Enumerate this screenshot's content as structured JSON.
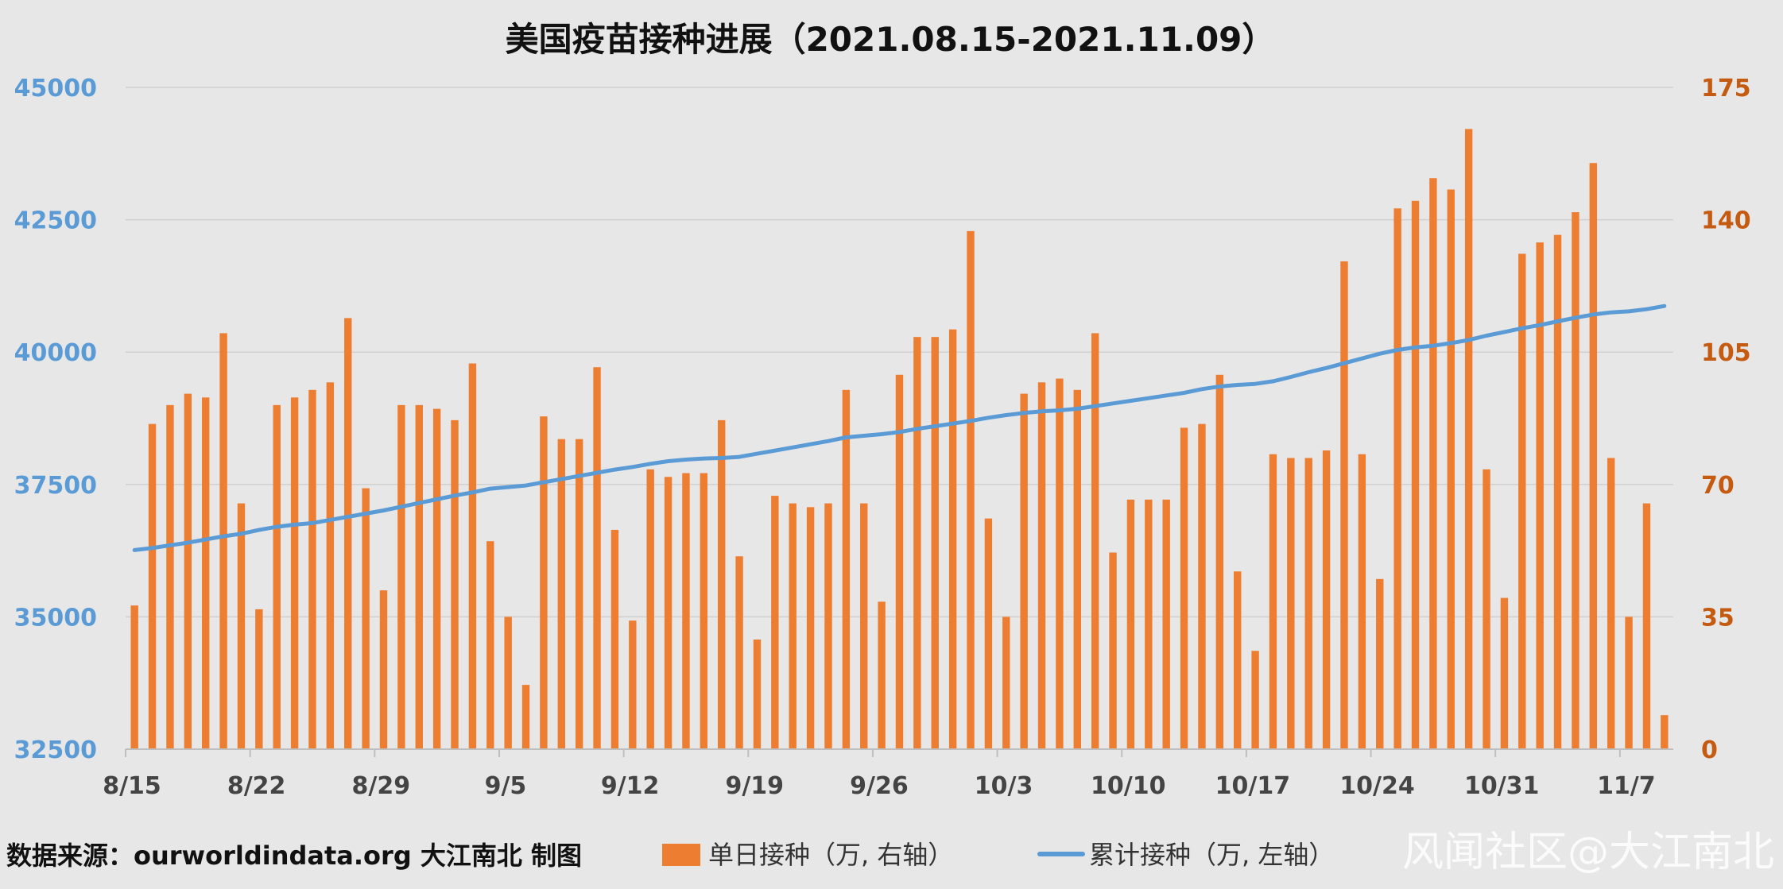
{
  "chart_data": {
    "type": "bar",
    "title": "美国疫苗接种进展（2021.08.15-2021.11.09）",
    "source": "数据来源：ourworldindata.org 大江南北 制图",
    "watermark": "风闻社区@大江南北",
    "x_tick_labels": [
      "8/15",
      "8/22",
      "8/29",
      "9/5",
      "9/12",
      "9/19",
      "9/26",
      "10/3",
      "10/10",
      "10/17",
      "10/24",
      "10/31",
      "11/7"
    ],
    "left_axis": {
      "ticks": [
        32500,
        35000,
        37500,
        40000,
        42500,
        45000
      ],
      "range": [
        32500,
        45000
      ]
    },
    "right_axis": {
      "ticks": [
        0,
        35,
        70,
        105,
        140,
        175
      ],
      "range": [
        0,
        175
      ]
    },
    "colors": {
      "bars": "#ed7d31",
      "line": "#5b9bd5",
      "left_axis": "#5b9bd5",
      "right_axis": "#c55a11",
      "gridline": "#d0d0d0"
    },
    "series": [
      {
        "name": "单日接种（万, 右轴）",
        "kind": "bar",
        "axis": "right",
        "values": [
          38,
          86,
          91,
          94,
          93,
          110,
          65,
          37,
          91,
          93,
          95,
          97,
          114,
          69,
          42,
          91,
          91,
          90,
          87,
          102,
          55,
          35,
          17,
          88,
          82,
          82,
          101,
          58,
          34,
          74,
          72,
          73,
          73,
          87,
          51,
          29,
          67,
          65,
          64,
          65,
          95,
          65,
          39,
          99,
          109,
          109,
          111,
          137,
          61,
          35,
          94,
          97,
          98,
          95,
          110,
          52,
          66,
          66,
          66,
          85,
          86,
          99,
          47,
          26,
          78,
          77,
          77,
          79,
          129,
          78,
          45,
          143,
          145,
          151,
          148,
          164,
          74,
          40,
          131,
          134,
          136,
          142,
          155,
          77,
          35,
          65,
          9
        ]
      },
      {
        "name": "累计接种（万, 左轴）",
        "kind": "line",
        "axis": "left",
        "values": [
          36260,
          36300,
          36350,
          36400,
          36460,
          36520,
          36570,
          36640,
          36700,
          36740,
          36770,
          36830,
          36890,
          36950,
          37010,
          37080,
          37150,
          37220,
          37290,
          37350,
          37420,
          37450,
          37480,
          37540,
          37600,
          37660,
          37720,
          37780,
          37830,
          37890,
          37940,
          37970,
          37990,
          38000,
          38020,
          38080,
          38140,
          38200,
          38260,
          38320,
          38390,
          38420,
          38450,
          38490,
          38550,
          38600,
          38650,
          38700,
          38760,
          38810,
          38850,
          38880,
          38900,
          38930,
          38980,
          39030,
          39080,
          39130,
          39180,
          39230,
          39300,
          39350,
          39380,
          39400,
          39450,
          39530,
          39620,
          39700,
          39790,
          39880,
          39970,
          40040,
          40090,
          40120,
          40170,
          40230,
          40310,
          40380,
          40450,
          40510,
          40580,
          40650,
          40710,
          40750,
          40770,
          40810,
          40870
        ]
      }
    ]
  }
}
